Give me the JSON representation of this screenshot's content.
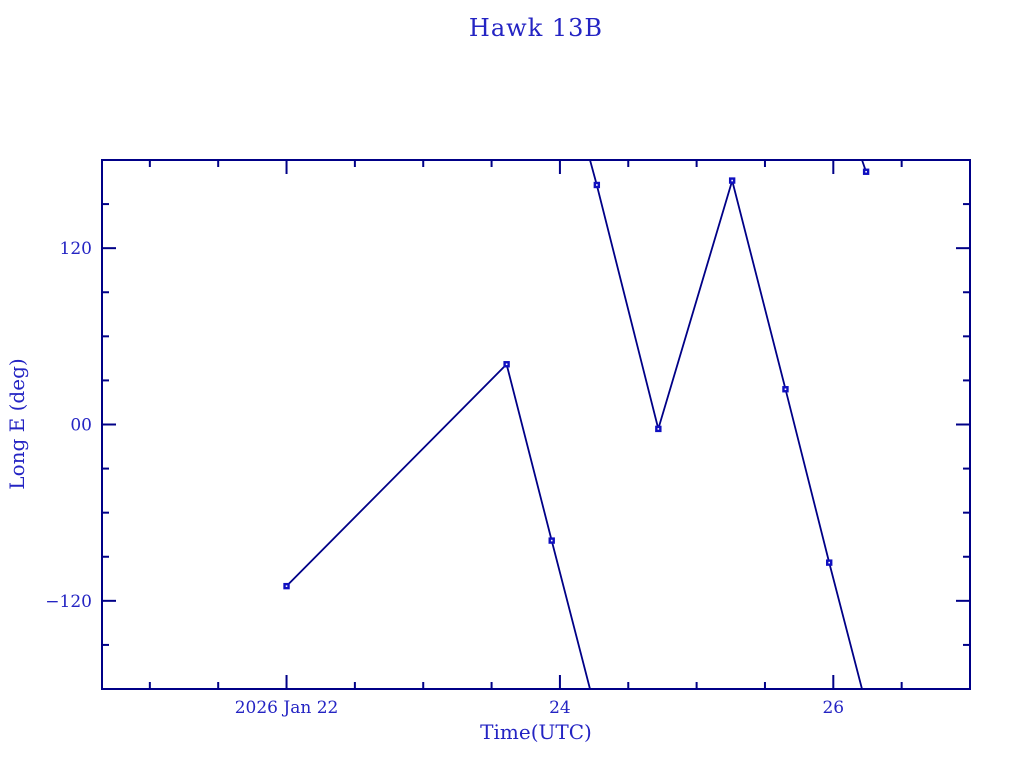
{
  "chart_data": {
    "type": "line",
    "title": "Hawk 13B",
    "xlabel": "Time(UTC)",
    "ylabel": "Long E (deg)",
    "xlim": [
      20.65,
      27.0
    ],
    "ylim": [
      -180,
      180
    ],
    "grid": false,
    "legend": null,
    "x_major_ticks": [
      {
        "value": 22,
        "label": "2026 Jan 22"
      },
      {
        "value": 24,
        "label": "24"
      },
      {
        "value": 26,
        "label": "26"
      }
    ],
    "x_minor_ticks": [
      21,
      21.5,
      22.5,
      23,
      23.5,
      24.5,
      25,
      25.5,
      26.5,
      27
    ],
    "y_major_ticks": [
      {
        "value": 120,
        "label": "120"
      },
      {
        "value": 0,
        "label": "00"
      },
      {
        "value": -120,
        "label": "−120"
      }
    ],
    "y_minor_ticks": [
      150,
      90,
      60,
      30,
      -30,
      -60,
      -90,
      -150
    ],
    "points": [
      [
        22.0,
        -110
      ],
      [
        23.61,
        41
      ],
      [
        23.94,
        -79
      ],
      [
        24.27,
        163
      ],
      [
        24.72,
        -3
      ],
      [
        25.26,
        166
      ],
      [
        25.65,
        24
      ],
      [
        25.97,
        -94
      ],
      [
        26.24,
        172
      ]
    ],
    "segments": [
      [
        [
          22.0,
          -110
        ],
        [
          23.61,
          41
        ],
        [
          23.94,
          -79
        ],
        [
          24.22,
          -180
        ]
      ],
      [
        [
          24.22,
          180
        ],
        [
          24.27,
          163
        ],
        [
          24.72,
          -3
        ],
        [
          25.26,
          166
        ],
        [
          25.65,
          24
        ],
        [
          25.97,
          -94
        ],
        [
          26.21,
          -180
        ]
      ],
      [
        [
          26.21,
          180
        ],
        [
          26.24,
          172
        ]
      ]
    ],
    "colors": {
      "axis": "#000087",
      "line": "#000087",
      "marker": "#0f0fc0",
      "text": "#2424c3",
      "background": "#ffffff"
    }
  }
}
